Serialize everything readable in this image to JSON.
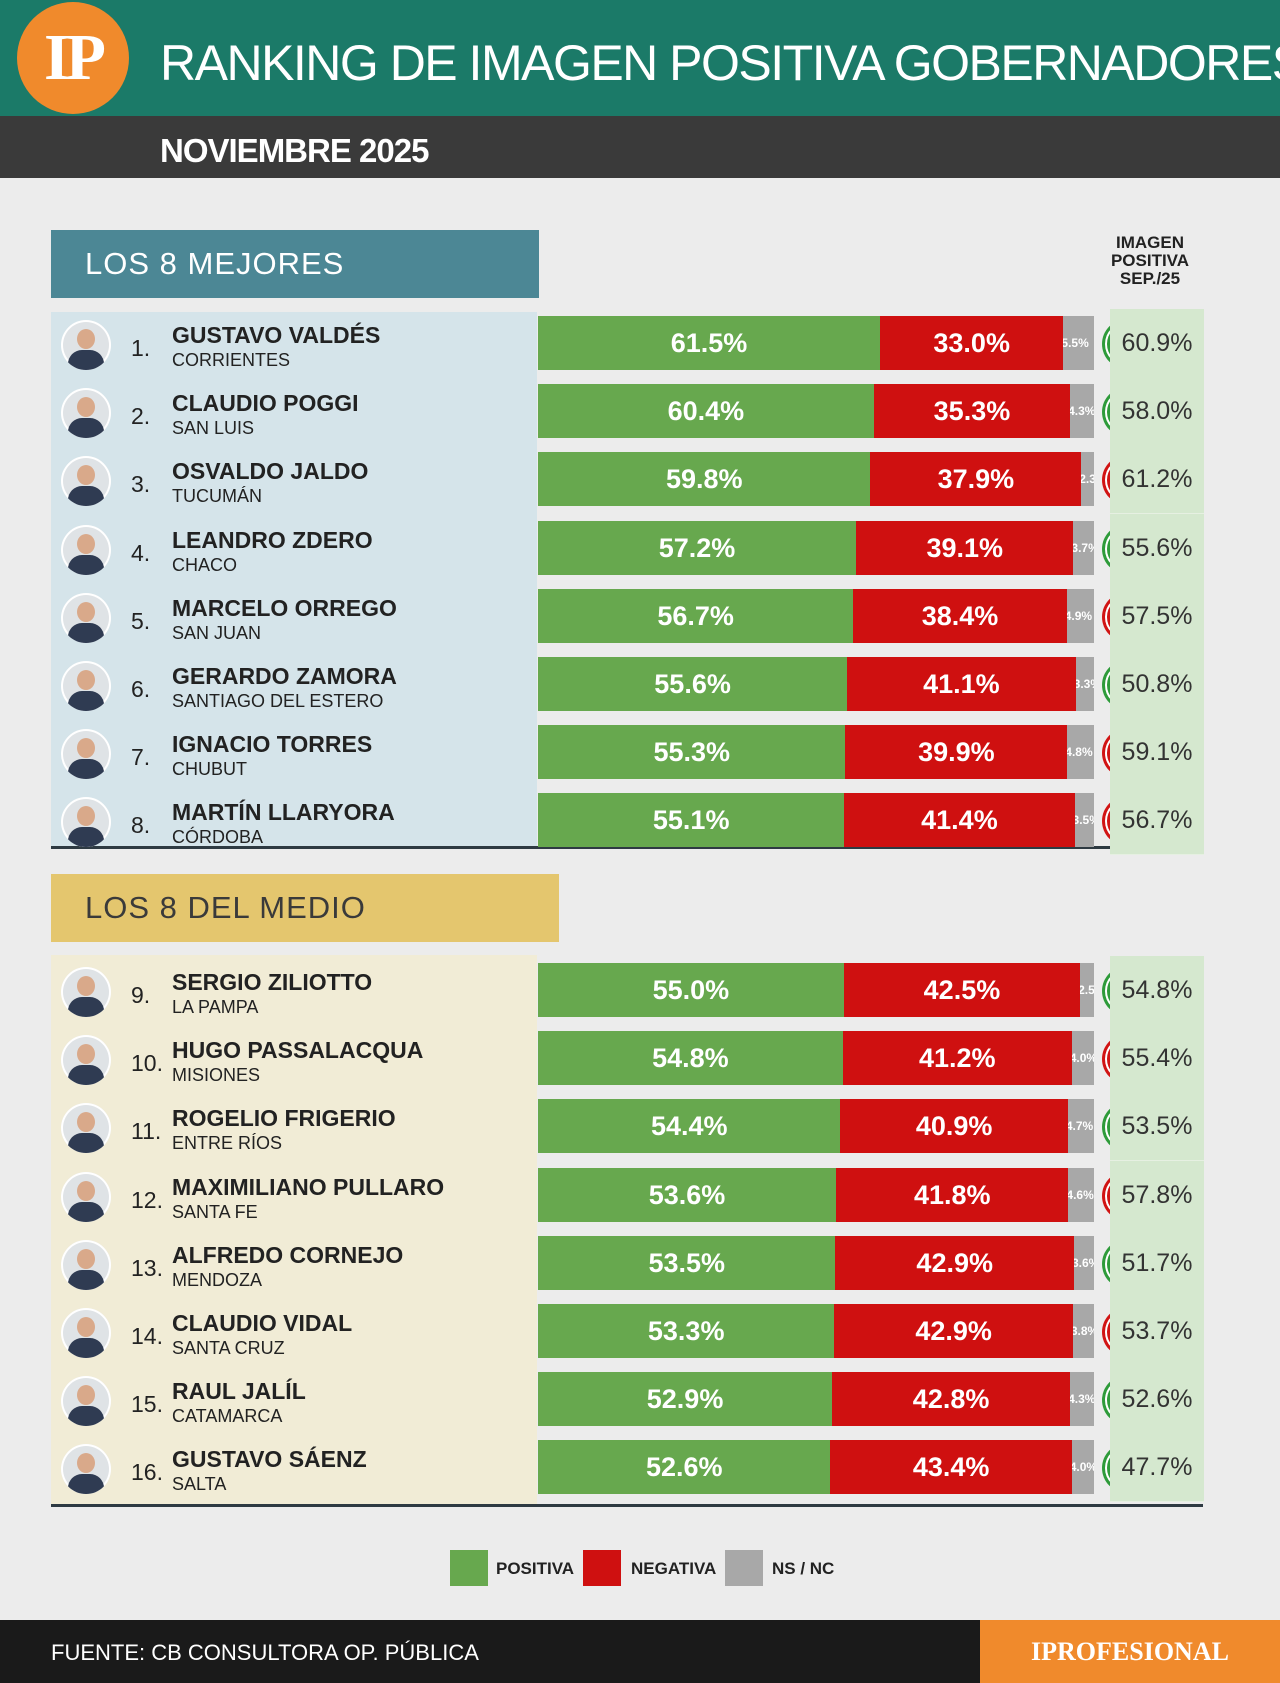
{
  "header": {
    "logo": "IP",
    "title": "RANKING DE IMAGEN POSITIVA GOBERNADORES",
    "subtitle": "NOVIEMBRE 2025"
  },
  "sections": {
    "best": "LOS 8 MEJORES",
    "middle": "LOS 8 DEL MEDIO"
  },
  "column_header": [
    "IMAGEN",
    "POSITIVA",
    "SEP./25"
  ],
  "legend": {
    "positive": "POSITIVA",
    "negative": "NEGATIVA",
    "nsnc": "NS / NC"
  },
  "colors": {
    "positive": "#67a84e",
    "negative": "#cf1010",
    "nsnc": "#a8a8a8",
    "up": "#2e9b3a",
    "down": "#d11414",
    "header": "#1b7a68",
    "brand": "#f08a2c"
  },
  "footer": {
    "source": "FUENTE: CB CONSULTORA OP. PÚBLICA",
    "brand": "IPROFESIONAL"
  },
  "chart_data": {
    "type": "bar",
    "title": "RANKING DE IMAGEN POSITIVA GOBERNADORES",
    "subtitle": "NOVIEMBRE 2025",
    "rows": [
      {
        "rank": "1.",
        "name": "GUSTAVO VALDÉS",
        "province": "CORRIENTES",
        "positive": 61.5,
        "negative": 33.0,
        "nsnc": 5.5,
        "trend": "up",
        "prev": 60.9
      },
      {
        "rank": "2.",
        "name": "CLAUDIO POGGI",
        "province": "SAN LUIS",
        "positive": 60.4,
        "negative": 35.3,
        "nsnc": 4.3,
        "trend": "up",
        "prev": 58.0
      },
      {
        "rank": "3.",
        "name": "OSVALDO JALDO",
        "province": "TUCUMÁN",
        "positive": 59.8,
        "negative": 37.9,
        "nsnc": 2.3,
        "trend": "down",
        "prev": 61.2
      },
      {
        "rank": "4.",
        "name": "LEANDRO ZDERO",
        "province": "CHACO",
        "positive": 57.2,
        "negative": 39.1,
        "nsnc": 3.7,
        "trend": "up",
        "prev": 55.6
      },
      {
        "rank": "5.",
        "name": "MARCELO ORREGO",
        "province": "SAN JUAN",
        "positive": 56.7,
        "negative": 38.4,
        "nsnc": 4.9,
        "trend": "down",
        "prev": 57.5
      },
      {
        "rank": "6.",
        "name": "GERARDO ZAMORA",
        "province": "SANTIAGO DEL ESTERO",
        "positive": 55.6,
        "negative": 41.1,
        "nsnc": 3.3,
        "trend": "up",
        "prev": 50.8
      },
      {
        "rank": "7.",
        "name": "IGNACIO TORRES",
        "province": "CHUBUT",
        "positive": 55.3,
        "negative": 39.9,
        "nsnc": 4.8,
        "trend": "down",
        "prev": 59.1
      },
      {
        "rank": "8.",
        "name": "MARTÍN LLARYORA",
        "province": "CÓRDOBA",
        "positive": 55.1,
        "negative": 41.4,
        "nsnc": 3.5,
        "trend": "down",
        "prev": 56.7
      },
      {
        "rank": "9.",
        "name": "SERGIO ZILIOTTO",
        "province": "LA PAMPA",
        "positive": 55.0,
        "negative": 42.5,
        "nsnc": 2.5,
        "trend": "up",
        "prev": 54.8
      },
      {
        "rank": "10.",
        "name": "HUGO PASSALACQUA",
        "province": "MISIONES",
        "positive": 54.8,
        "negative": 41.2,
        "nsnc": 4.0,
        "trend": "down",
        "prev": 55.4
      },
      {
        "rank": "11.",
        "name": "ROGELIO FRIGERIO",
        "province": "ENTRE RÍOS",
        "positive": 54.4,
        "negative": 40.9,
        "nsnc": 4.7,
        "trend": "up",
        "prev": 53.5
      },
      {
        "rank": "12.",
        "name": "MAXIMILIANO PULLARO",
        "province": "SANTA FE",
        "positive": 53.6,
        "negative": 41.8,
        "nsnc": 4.6,
        "trend": "down",
        "prev": 57.8
      },
      {
        "rank": "13.",
        "name": "ALFREDO CORNEJO",
        "province": "MENDOZA",
        "positive": 53.5,
        "negative": 42.9,
        "nsnc": 3.6,
        "trend": "up",
        "prev": 51.7
      },
      {
        "rank": "14.",
        "name": "CLAUDIO VIDAL",
        "province": "SANTA CRUZ",
        "positive": 53.3,
        "negative": 42.9,
        "nsnc": 3.8,
        "trend": "down",
        "prev": 53.7
      },
      {
        "rank": "15.",
        "name": "RAUL JALÍL",
        "province": "CATAMARCA",
        "positive": 52.9,
        "negative": 42.8,
        "nsnc": 4.3,
        "trend": "up",
        "prev": 52.6
      },
      {
        "rank": "16.",
        "name": "GUSTAVO SÁENZ",
        "province": "SALTA",
        "positive": 52.6,
        "negative": 43.4,
        "nsnc": 4.0,
        "trend": "up",
        "prev": 47.7
      }
    ],
    "legend": [
      "POSITIVA",
      "NEGATIVA",
      "NS / NC"
    ]
  }
}
